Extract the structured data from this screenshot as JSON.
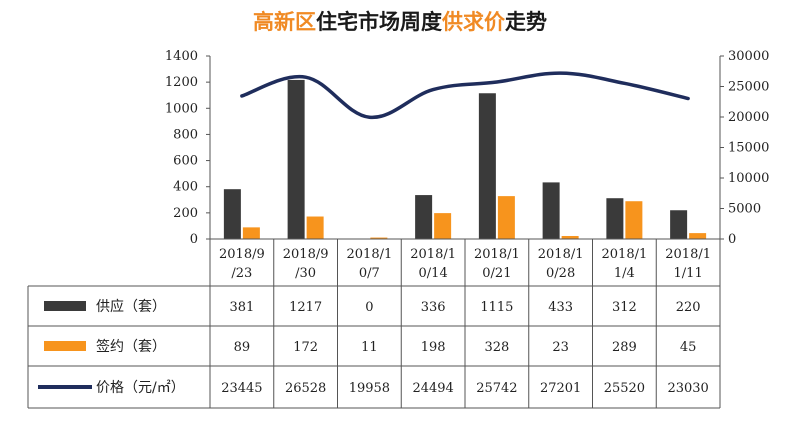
{
  "title_parts": [
    {
      "text": "高新区",
      "accent": true
    },
    {
      "text": "住宅市场周度",
      "accent": false
    },
    {
      "text": "供求价",
      "accent": true
    },
    {
      "text": "走势",
      "accent": false
    }
  ],
  "colors": {
    "supply": "#3a3a3a",
    "sign": "#f7941d",
    "price": "#1f2d5c",
    "accent": "#f08a24"
  },
  "chart_data": {
    "type": "bar",
    "categories": [
      "2018/9/23",
      "2018/9/30",
      "2018/10/7",
      "2018/10/14",
      "2018/10/21",
      "2018/10/28",
      "2018/11/4",
      "2018/11/11"
    ],
    "category_lines": [
      [
        "2018/9",
        "/23"
      ],
      [
        "2018/9",
        "/30"
      ],
      [
        "2018/1",
        "0/7"
      ],
      [
        "2018/1",
        "0/14"
      ],
      [
        "2018/1",
        "0/21"
      ],
      [
        "2018/1",
        "0/28"
      ],
      [
        "2018/1",
        "1/4"
      ],
      [
        "2018/1",
        "1/11"
      ]
    ],
    "series": [
      {
        "name": "供应（套）",
        "type": "bar",
        "axis": "left",
        "values": [
          381,
          1217,
          0,
          336,
          1115,
          433,
          312,
          220
        ]
      },
      {
        "name": "签约（套）",
        "type": "bar",
        "axis": "left",
        "values": [
          89,
          172,
          11,
          198,
          328,
          23,
          289,
          45
        ]
      },
      {
        "name": "价格（元/㎡）",
        "type": "line",
        "axis": "right",
        "values": [
          23445,
          26528,
          19958,
          24494,
          25742,
          27201,
          25520,
          23030
        ]
      }
    ],
    "ylim_left": [
      0,
      1400
    ],
    "yticks_left": [
      "0",
      "200",
      "400",
      "600",
      "800",
      "1000",
      "1200",
      "1400"
    ],
    "ylim_right": [
      0,
      30000
    ],
    "yticks_right": [
      "0",
      "5000",
      "10000",
      "15000",
      "20000",
      "25000",
      "30000"
    ],
    "legend": "data-table"
  }
}
